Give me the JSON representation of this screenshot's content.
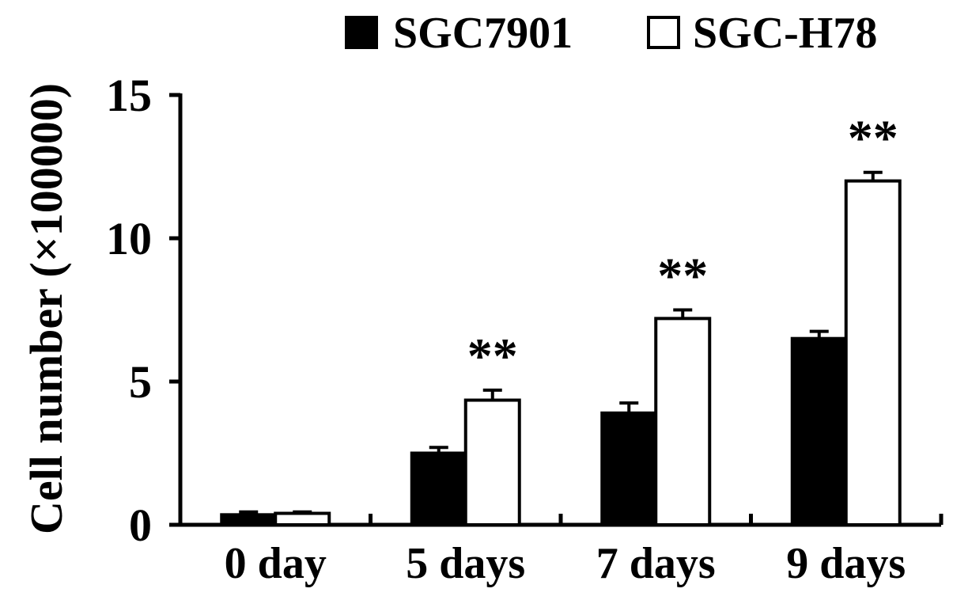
{
  "chart_data": {
    "type": "bar",
    "title": "",
    "xlabel": "",
    "ylabel": "Cell number (×100000)",
    "ylim": [
      0,
      15
    ],
    "yticks": [
      0,
      5,
      10,
      15
    ],
    "categories": [
      "0 day",
      "5 days",
      "7 days",
      "9 days"
    ],
    "series": [
      {
        "name": "SGC7901",
        "color": "#000000",
        "values": [
          0.35,
          2.5,
          3.9,
          6.5
        ],
        "errors": [
          0.1,
          0.2,
          0.35,
          0.25
        ]
      },
      {
        "name": "SGC-H78",
        "color": "#ffffff",
        "values": [
          0.4,
          4.35,
          7.2,
          12.0
        ],
        "errors": [
          0.05,
          0.35,
          0.3,
          0.3
        ]
      }
    ],
    "annotations": [
      "",
      "**",
      "**",
      "**"
    ],
    "legend": "top-right",
    "grid": false
  }
}
